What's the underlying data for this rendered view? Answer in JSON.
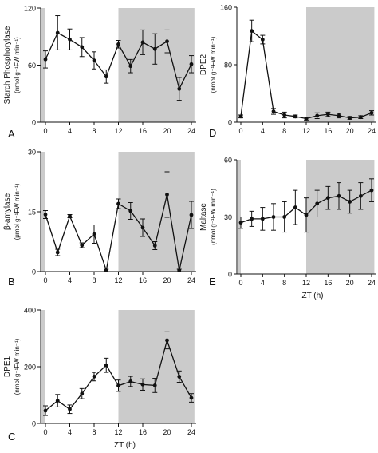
{
  "colors": {
    "dark_period": "#cbcbcb",
    "ink": "#111111"
  },
  "shared_xlabel": "ZT (h)",
  "chart_data": [
    {
      "type": "line",
      "panel_letter": "A",
      "title": "",
      "xlabel": "",
      "ylabel": "Starch Phosphorylase",
      "unit": "(nmol g⁻¹FW min⁻¹)",
      "xlim": [
        0,
        24
      ],
      "ylim": [
        0,
        120
      ],
      "xticks": [
        0,
        4,
        8,
        12,
        16,
        20,
        24
      ],
      "yticks": [
        0,
        60,
        120
      ],
      "dark_periods": [
        [
          -1,
          0
        ],
        [
          12,
          24.5
        ]
      ],
      "x": [
        0,
        2,
        4,
        6,
        8,
        10,
        12,
        14,
        16,
        18,
        20,
        22,
        24
      ],
      "y": [
        66,
        94,
        87,
        79,
        65,
        48,
        82,
        59,
        84,
        77,
        85,
        35,
        61
      ],
      "err": [
        9,
        18,
        11,
        10,
        9,
        7,
        4,
        7,
        13,
        16,
        12,
        12,
        9
      ]
    },
    {
      "type": "line",
      "panel_letter": "B",
      "title": "",
      "xlabel": "",
      "ylabel": "β-amylase",
      "unit": "(μmol g⁻¹FW min⁻¹)",
      "xlim": [
        0,
        24
      ],
      "ylim": [
        0,
        30
      ],
      "xticks": [
        0,
        4,
        8,
        12,
        16,
        20,
        24
      ],
      "yticks": [
        0,
        15,
        30
      ],
      "dark_periods": [
        [
          -1,
          0
        ],
        [
          12,
          24.5
        ]
      ],
      "x": [
        0,
        2,
        4,
        6,
        8,
        10,
        12,
        14,
        16,
        18,
        20,
        22,
        24
      ],
      "y": [
        14.3,
        4.8,
        13.9,
        6.6,
        9.4,
        0.3,
        17,
        15.2,
        11,
        6.5,
        19.3,
        0.3,
        14.2
      ],
      "err": [
        1,
        0.8,
        0.4,
        0.6,
        2.3,
        0.3,
        1.2,
        2.1,
        2.2,
        1,
        5.7,
        0.3,
        3.4
      ]
    },
    {
      "type": "line",
      "panel_letter": "C",
      "title": "",
      "xlabel": "ZT (h)",
      "ylabel": "DPE1",
      "unit": "(nmol g⁻¹FW min⁻¹)",
      "xlim": [
        0,
        24
      ],
      "ylim": [
        0,
        400
      ],
      "xticks": [
        0,
        4,
        8,
        12,
        16,
        20,
        24
      ],
      "yticks": [
        0,
        200,
        400
      ],
      "dark_periods": [
        [
          -1,
          0
        ],
        [
          12,
          24.5
        ]
      ],
      "x": [
        0,
        2,
        4,
        6,
        8,
        10,
        12,
        14,
        16,
        18,
        20,
        22,
        24
      ],
      "y": [
        45,
        80,
        50,
        105,
        165,
        205,
        133,
        148,
        137,
        134,
        293,
        165,
        90
      ],
      "err": [
        17,
        22,
        15,
        18,
        15,
        25,
        20,
        18,
        20,
        25,
        30,
        20,
        15
      ]
    },
    {
      "type": "line",
      "panel_letter": "D",
      "title": "",
      "xlabel": "",
      "ylabel": "DPE2",
      "unit": "(nmol g⁻¹FW min⁻¹)",
      "xlim": [
        0,
        24
      ],
      "ylim": [
        0,
        160
      ],
      "xticks": [
        0,
        4,
        8,
        12,
        16,
        20,
        24
      ],
      "yticks": [
        0,
        80,
        160
      ],
      "dark_periods": [
        [
          12,
          24.5
        ]
      ],
      "x": [
        0,
        2,
        4,
        6,
        8,
        10,
        12,
        14,
        16,
        18,
        20,
        22,
        24
      ],
      "y": [
        8,
        127,
        115,
        15,
        10,
        8,
        5,
        9,
        11,
        9,
        6,
        7,
        13
      ],
      "err": [
        2,
        15,
        6,
        4,
        4,
        2,
        2,
        4,
        3,
        3,
        2,
        2,
        3
      ]
    },
    {
      "type": "line",
      "panel_letter": "E",
      "title": "",
      "xlabel": "ZT (h)",
      "ylabel": "Maltase",
      "unit": "(nmol g⁻¹FW min⁻¹)",
      "xlim": [
        0,
        24
      ],
      "ylim": [
        0,
        60
      ],
      "xticks": [
        0,
        4,
        8,
        12,
        16,
        20,
        24
      ],
      "yticks": [
        0,
        30,
        60
      ],
      "dark_periods": [
        [
          -1,
          0
        ],
        [
          12,
          24.5
        ]
      ],
      "x": [
        0,
        2,
        4,
        6,
        8,
        10,
        12,
        14,
        16,
        18,
        20,
        22,
        24
      ],
      "y": [
        27,
        29,
        29,
        30,
        30,
        35,
        31,
        37,
        40,
        41,
        38,
        41,
        44
      ],
      "err": [
        3,
        4,
        6,
        7,
        8,
        9,
        9,
        7,
        6,
        7,
        6,
        7,
        6
      ]
    }
  ]
}
